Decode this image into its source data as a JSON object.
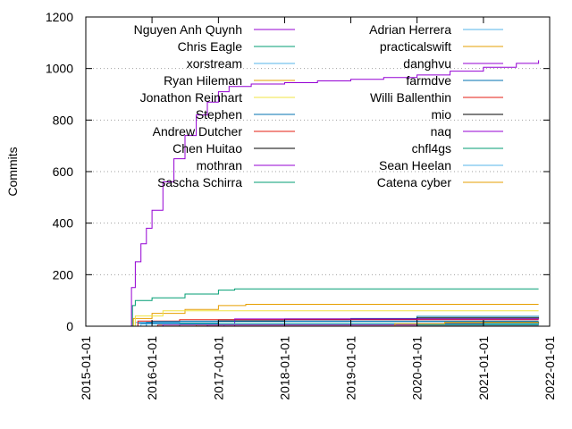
{
  "chart_data": {
    "type": "line",
    "title": "",
    "xlabel": "",
    "ylabel": "Commits",
    "ylim": [
      0,
      1200
    ],
    "xlim": [
      "2015-01-01",
      "2022-01-01"
    ],
    "y_ticks": [
      "0",
      "200",
      "400",
      "600",
      "800",
      "1000",
      "1200"
    ],
    "x_ticks": [
      "2015-01-01",
      "2016-01-01",
      "2017-01-01",
      "2018-01-01",
      "2019-01-01",
      "2020-01-01",
      "2021-01-01",
      "2022-01-01"
    ],
    "grid": "horizontal dotted",
    "legend_position": "top, two columns",
    "series": [
      {
        "name": "Nguyen Anh Quynh",
        "color": "#9400d3",
        "points": [
          [
            "2015-09-01",
            0
          ],
          [
            "2015-09-10",
            150
          ],
          [
            "2015-10-01",
            250
          ],
          [
            "2015-11-01",
            320
          ],
          [
            "2015-12-01",
            380
          ],
          [
            "2016-01-01",
            450
          ],
          [
            "2016-03-01",
            560
          ],
          [
            "2016-05-01",
            650
          ],
          [
            "2016-07-01",
            740
          ],
          [
            "2016-09-01",
            820
          ],
          [
            "2016-11-01",
            870
          ],
          [
            "2017-01-01",
            910
          ],
          [
            "2017-03-01",
            930
          ],
          [
            "2017-07-01",
            940
          ],
          [
            "2018-01-01",
            945
          ],
          [
            "2018-07-01",
            952
          ],
          [
            "2019-01-01",
            958
          ],
          [
            "2019-07-01",
            965
          ],
          [
            "2020-01-01",
            975
          ],
          [
            "2020-07-01",
            990
          ],
          [
            "2021-01-01",
            1005
          ],
          [
            "2021-07-01",
            1020
          ],
          [
            "2021-11-01",
            1032
          ]
        ]
      },
      {
        "name": "Chris Eagle",
        "color": "#009e73",
        "points": [
          [
            "2015-09-01",
            0
          ],
          [
            "2015-09-15",
            80
          ],
          [
            "2015-10-01",
            100
          ],
          [
            "2016-01-01",
            110
          ],
          [
            "2016-07-01",
            125
          ],
          [
            "2017-01-01",
            140
          ],
          [
            "2017-04-01",
            145
          ],
          [
            "2021-11-01",
            145
          ]
        ]
      },
      {
        "name": "xorstream",
        "color": "#56b4e9",
        "points": [
          [
            "2015-09-20",
            0
          ],
          [
            "2015-10-01",
            15
          ],
          [
            "2016-06-01",
            20
          ],
          [
            "2021-11-01",
            20
          ]
        ]
      },
      {
        "name": "Ryan Hileman",
        "color": "#e69f00",
        "points": [
          [
            "2015-09-01",
            0
          ],
          [
            "2015-09-20",
            30
          ],
          [
            "2016-01-01",
            50
          ],
          [
            "2016-07-01",
            65
          ],
          [
            "2017-01-01",
            80
          ],
          [
            "2017-06-01",
            85
          ],
          [
            "2021-11-01",
            85
          ]
        ]
      },
      {
        "name": "Jonathon Reinhart",
        "color": "#f0e442",
        "points": [
          [
            "2015-09-01",
            0
          ],
          [
            "2015-10-01",
            40
          ],
          [
            "2016-03-01",
            60
          ],
          [
            "2021-11-01",
            60
          ]
        ]
      },
      {
        "name": "Stephen",
        "color": "#0072b2",
        "points": [
          [
            "2015-10-01",
            0
          ],
          [
            "2015-10-15",
            12
          ],
          [
            "2017-01-01",
            25
          ],
          [
            "2019-01-01",
            30
          ],
          [
            "2020-01-01",
            38
          ],
          [
            "2021-11-01",
            40
          ]
        ]
      },
      {
        "name": "Andrew Dutcher",
        "color": "#e51e10",
        "points": [
          [
            "2015-10-01",
            0
          ],
          [
            "2015-10-15",
            20
          ],
          [
            "2016-06-01",
            25
          ],
          [
            "2021-11-01",
            25
          ]
        ]
      },
      {
        "name": "Chen Huitao",
        "color": "#000000",
        "points": [
          [
            "2016-06-01",
            0
          ],
          [
            "2017-01-01",
            20
          ],
          [
            "2018-01-01",
            28
          ],
          [
            "2020-01-01",
            32
          ],
          [
            "2021-11-01",
            34
          ]
        ]
      },
      {
        "name": "mothran",
        "color": "#9400d3",
        "points": [
          [
            "2017-03-01",
            0
          ],
          [
            "2017-04-01",
            28
          ],
          [
            "2021-11-01",
            30
          ]
        ]
      },
      {
        "name": "Sascha Schirra",
        "color": "#009e73",
        "points": [
          [
            "2016-05-01",
            0
          ],
          [
            "2016-06-01",
            10
          ],
          [
            "2021-11-01",
            12
          ]
        ]
      },
      {
        "name": "Adrian Herrera",
        "color": "#56b4e9",
        "points": [
          [
            "2017-01-01",
            0
          ],
          [
            "2017-02-01",
            6
          ],
          [
            "2021-11-01",
            8
          ]
        ]
      },
      {
        "name": "practicalswift",
        "color": "#e69f00",
        "points": [
          [
            "2016-08-01",
            0
          ],
          [
            "2016-09-01",
            5
          ],
          [
            "2017-01-01",
            6
          ],
          [
            "2021-11-01",
            6
          ]
        ]
      },
      {
        "name": "danghvu",
        "color": "#9400d3",
        "points": [
          [
            "2016-10-01",
            0
          ],
          [
            "2016-11-01",
            5
          ],
          [
            "2021-11-01",
            5
          ]
        ]
      },
      {
        "name": "farmdve",
        "color": "#0072b2",
        "points": [
          [
            "2015-11-01",
            0
          ],
          [
            "2015-12-01",
            15
          ],
          [
            "2016-01-01",
            18
          ],
          [
            "2021-11-01",
            18
          ]
        ]
      },
      {
        "name": "Willi Ballenthin",
        "color": "#e51e10",
        "points": [
          [
            "2016-01-01",
            0
          ],
          [
            "2016-02-01",
            5
          ],
          [
            "2021-11-01",
            5
          ]
        ]
      },
      {
        "name": "mio",
        "color": "#000000",
        "points": [
          [
            "2019-06-01",
            0
          ],
          [
            "2020-01-01",
            10
          ],
          [
            "2021-01-01",
            15
          ],
          [
            "2021-11-01",
            16
          ]
        ]
      },
      {
        "name": "naq",
        "color": "#9400d3",
        "points": [
          [
            "2016-02-01",
            0
          ],
          [
            "2016-03-01",
            6
          ],
          [
            "2021-11-01",
            6
          ]
        ]
      },
      {
        "name": "chfl4gs",
        "color": "#009e73",
        "points": [
          [
            "2019-01-01",
            0
          ],
          [
            "2020-01-01",
            5
          ],
          [
            "2021-11-01",
            5
          ]
        ]
      },
      {
        "name": "Sean Heelan",
        "color": "#56b4e9",
        "points": [
          [
            "2015-10-01",
            0
          ],
          [
            "2015-11-01",
            8
          ],
          [
            "2021-11-01",
            8
          ]
        ]
      },
      {
        "name": "Catena cyber",
        "color": "#e69f00",
        "points": [
          [
            "2019-06-01",
            0
          ],
          [
            "2019-09-01",
            10
          ],
          [
            "2020-06-01",
            15
          ],
          [
            "2021-11-01",
            15
          ]
        ]
      }
    ]
  }
}
